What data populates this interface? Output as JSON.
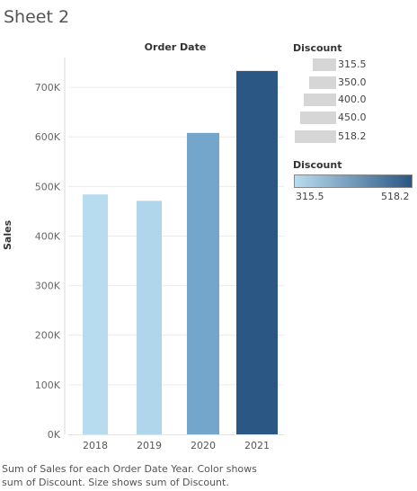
{
  "sheet_title": "Sheet 2",
  "column_header": "Order Date",
  "y_axis_title": "Sales",
  "caption": "Sum of Sales for each Order Date Year.  Color shows sum of Discount.  Size shows sum of Discount.",
  "size_legend": {
    "title": "Discount",
    "items": [
      "315.5",
      "350.0",
      "400.0",
      "450.0",
      "518.2"
    ]
  },
  "color_legend": {
    "title": "Discount",
    "min_label": "315.5",
    "max_label": "518.2",
    "color_low": "#b9dcef",
    "color_high": "#2a5783"
  },
  "chart_data": {
    "type": "bar",
    "categories": [
      "2018",
      "2019",
      "2020",
      "2021"
    ],
    "values": [
      484000,
      471000,
      608000,
      733000
    ],
    "colors": [
      "#b8dcef",
      "#b0d6ec",
      "#74a6cb",
      "#2a5783"
    ],
    "ylabel": "Sales",
    "ylim": [
      0,
      760000
    ],
    "yticks": [
      0,
      100000,
      200000,
      300000,
      400000,
      500000,
      600000,
      700000
    ],
    "ytick_labels": [
      "0K",
      "100K",
      "200K",
      "300K",
      "400K",
      "500K",
      "600K",
      "700K"
    ],
    "grid": true
  }
}
